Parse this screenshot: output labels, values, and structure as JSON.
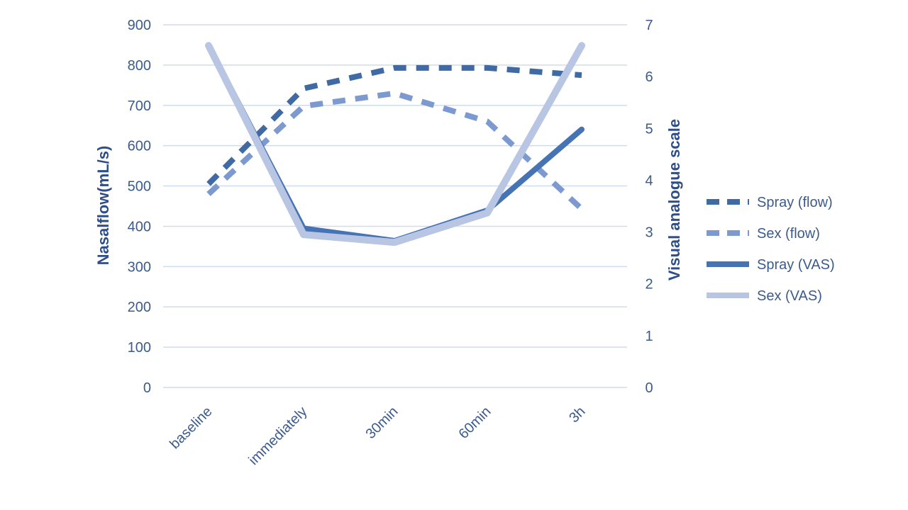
{
  "chart_data": {
    "type": "line",
    "categories": [
      "baseline",
      "immediately",
      "30min",
      "60min",
      "3h"
    ],
    "ylabel": "Nasalflow(mL/s)",
    "y2label": "Visual analogue scale",
    "ylim": [
      0,
      900
    ],
    "yticks": [
      0,
      100,
      200,
      300,
      400,
      500,
      600,
      700,
      800,
      900
    ],
    "y2lim": [
      0,
      7
    ],
    "y2ticks": [
      0,
      1,
      2,
      3,
      4,
      5,
      6,
      7
    ],
    "grid": true,
    "legend_position": "right",
    "series": [
      {
        "name": "Spray (flow)",
        "axis": "left",
        "style": "dashed",
        "color": "#3f6aa4",
        "values": [
          505,
          742,
          793,
          793,
          775
        ]
      },
      {
        "name": "Sex (flow)",
        "axis": "left",
        "style": "dashed",
        "color": "#7d9ad0",
        "values": [
          480,
          698,
          730,
          660,
          443
        ]
      },
      {
        "name": "Spray (VAS)",
        "axis": "right",
        "style": "solid",
        "color": "#4673b3",
        "values": [
          6.6,
          3.07,
          2.83,
          3.42,
          4.98
        ]
      },
      {
        "name": "Sex (VAS)",
        "axis": "right",
        "style": "solid",
        "color": "#b9c6e3",
        "values": [
          6.6,
          2.95,
          2.8,
          3.37,
          6.6
        ]
      }
    ]
  }
}
